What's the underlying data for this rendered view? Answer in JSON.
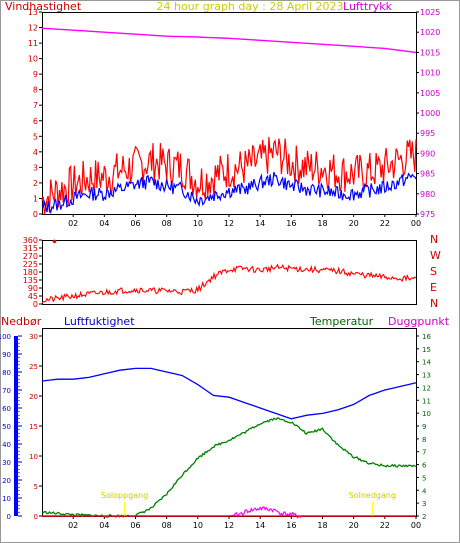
{
  "header": {
    "left_label": "Vindhastighet",
    "title": "24 hour graph day : 28 April 2023",
    "right_label": "Lufttrykk"
  },
  "lower_labels": {
    "rain": "Nedbør",
    "humidity": "Luftfuktighet",
    "temperature": "Temperatur",
    "dewpoint": "Duggpunkt"
  },
  "colors": {
    "bg": "#ffffff",
    "frame": "#000000",
    "wind": "#ff0000",
    "wind_avg": "#0000ff",
    "pressure": "#ff00ff",
    "direction": "#ff0000",
    "humidity": "#0000ff",
    "temperature": "#008000",
    "dewpoint": "#ff00ff",
    "rain": "#ff0000",
    "sun": "#ffff00",
    "label_red": "#cc0000",
    "label_yellow": "#cccc00",
    "label_magenta": "#cc00cc",
    "label_blue": "#0000cc",
    "label_green": "#006600"
  },
  "chart_data": [
    {
      "type": "line",
      "x_ticks": [
        "02",
        "04",
        "06",
        "08",
        "10",
        "12",
        "14",
        "16",
        "18",
        "20",
        "22",
        "00"
      ],
      "y_left": {
        "ticks": [
          "0",
          "1",
          "2",
          "3",
          "4",
          "5",
          "6",
          "7",
          "8",
          "9",
          "10",
          "11",
          "12",
          "13"
        ],
        "ylim": [
          0,
          13
        ]
      },
      "y_right": {
        "ticks": [
          "975",
          "980",
          "985",
          "990",
          "995",
          "1000",
          "1005",
          "1010",
          "1015",
          "1020",
          "1025"
        ],
        "ylim": [
          975,
          1025
        ]
      },
      "series": [
        {
          "key": "wind_gust",
          "x": [
            0,
            1,
            2,
            3,
            4,
            5,
            6,
            7,
            8,
            9,
            10,
            11,
            12,
            13,
            14,
            15,
            16,
            17,
            18,
            19,
            20,
            21,
            22,
            23,
            24
          ],
          "values": [
            0.9,
            1.5,
            1.9,
            2.3,
            2.4,
            2.8,
            3.1,
            3.4,
            3.2,
            3.0,
            2.1,
            2.4,
            2.9,
            3.0,
            3.4,
            4.0,
            3.3,
            3.0,
            3.0,
            2.7,
            2.6,
            2.7,
            3.0,
            3.5,
            3.8
          ]
        },
        {
          "key": "wind_avg",
          "x": [
            0,
            1,
            2,
            3,
            4,
            5,
            6,
            7,
            8,
            9,
            10,
            11,
            12,
            13,
            14,
            15,
            16,
            17,
            18,
            19,
            20,
            21,
            22,
            23,
            24
          ],
          "values": [
            0.4,
            0.6,
            1.0,
            1.3,
            1.3,
            1.6,
            1.9,
            2.1,
            1.8,
            1.6,
            0.9,
            1.2,
            1.5,
            1.6,
            2.0,
            2.3,
            1.8,
            1.6,
            1.5,
            1.3,
            1.3,
            1.5,
            1.7,
            2.1,
            2.5
          ]
        },
        {
          "key": "pressure",
          "axis": "right",
          "x": [
            0,
            2,
            4,
            6,
            8,
            10,
            12,
            14,
            16,
            18,
            20,
            22,
            24
          ],
          "values": [
            1021,
            1020.5,
            1020,
            1019.5,
            1019,
            1018.8,
            1018.5,
            1018,
            1017.5,
            1017,
            1016.5,
            1016,
            1015
          ]
        }
      ]
    },
    {
      "type": "line",
      "y_left": {
        "ticks": [
          "0",
          "45",
          "90",
          "135",
          "180",
          "225",
          "270",
          "315",
          "360"
        ],
        "ylim": [
          0,
          360
        ]
      },
      "y_right": {
        "ticks": [
          "N",
          "E",
          "S",
          "W",
          "N"
        ]
      },
      "series": [
        {
          "key": "wind_dir",
          "x": [
            0,
            1,
            2,
            3,
            4,
            5,
            6,
            7,
            8,
            9,
            10,
            11,
            12,
            13,
            14,
            15,
            16,
            17,
            18,
            19,
            20,
            21,
            22,
            23,
            24
          ],
          "values": [
            20,
            30,
            45,
            55,
            65,
            75,
            80,
            75,
            75,
            70,
            80,
            155,
            195,
            200,
            190,
            205,
            200,
            195,
            190,
            185,
            170,
            160,
            150,
            145,
            140
          ]
        }
      ]
    },
    {
      "type": "line",
      "y_rain": {
        "ticks": [
          "0",
          "10",
          "20",
          "30",
          "40",
          "50",
          "60",
          "70",
          "80",
          "90",
          "100"
        ],
        "ylim": [
          0,
          100
        ]
      },
      "y_humidity": {
        "ticks": [
          "0",
          "5",
          "10",
          "15",
          "20",
          "25",
          "30"
        ],
        "ylim": [
          0,
          30
        ]
      },
      "y_temp": {
        "ticks": [
          "2",
          "3",
          "4",
          "5",
          "6",
          "7",
          "8",
          "9",
          "10",
          "11",
          "12",
          "13",
          "14",
          "15",
          "16"
        ],
        "ylim": [
          2,
          16
        ]
      },
      "annotations": [
        {
          "text": "Soloppgang",
          "x": 5.3
        },
        {
          "text": "Solnedgang",
          "x": 21.2
        }
      ],
      "series": [
        {
          "key": "humidity",
          "x": [
            0,
            1,
            2,
            3,
            4,
            5,
            6,
            7,
            8,
            9,
            10,
            11,
            12,
            13,
            14,
            15,
            16,
            17,
            18,
            19,
            20,
            21,
            22,
            23,
            24
          ],
          "values": [
            75,
            76,
            76,
            77,
            79,
            81,
            82,
            82,
            80,
            78,
            73,
            67,
            66,
            63,
            60,
            57,
            54,
            56,
            57,
            59,
            62,
            67,
            70,
            72,
            74
          ]
        },
        {
          "key": "temperature",
          "x": [
            0,
            1,
            2,
            3,
            4,
            5,
            6,
            7,
            8,
            9,
            10,
            11,
            12,
            13,
            14,
            15,
            16,
            17,
            18,
            19,
            20,
            21,
            22,
            23,
            24
          ],
          "values": [
            2.3,
            2.2,
            2.1,
            2.05,
            2.0,
            2.0,
            2.05,
            2.6,
            3.7,
            5.2,
            6.5,
            7.4,
            7.9,
            8.5,
            9.2,
            9.6,
            9.3,
            8.4,
            8.8,
            7.5,
            6.6,
            6.1,
            5.9,
            5.9,
            5.9
          ]
        },
        {
          "key": "dewpoint",
          "x": [
            0,
            2,
            4,
            6,
            8,
            10,
            12,
            12.6,
            13.2,
            14,
            14.8,
            15.4,
            16,
            16.4,
            18,
            20,
            22,
            24
          ],
          "values": [
            2.0,
            2.0,
            2.0,
            2.0,
            2.0,
            2.0,
            2.0,
            2.1,
            2.4,
            2.6,
            2.5,
            2.2,
            2.1,
            2.0,
            2.0,
            2.0,
            2.0,
            2.0
          ]
        },
        {
          "key": "rain",
          "x": [
            0,
            24
          ],
          "values": [
            0,
            0
          ]
        }
      ]
    }
  ]
}
